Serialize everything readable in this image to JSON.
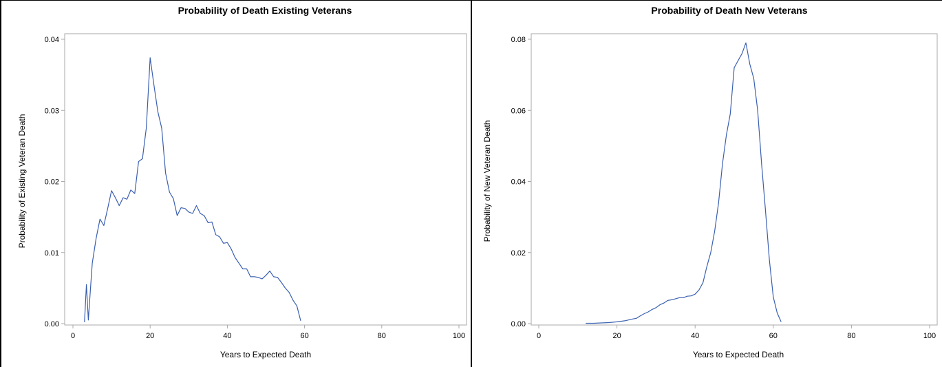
{
  "colors": {
    "line": "#3a5fb0",
    "frame": "#a8a8a8"
  },
  "chart_data": [
    {
      "type": "line",
      "title": "Probability of Death Existing Veterans",
      "xlabel": "Years to Expected Death",
      "ylabel": "Probability of Existing Veteran Death",
      "xlim": [
        0,
        100
      ],
      "ylim": [
        0,
        0.04
      ],
      "xticks": [
        "0",
        "20",
        "40",
        "60",
        "80",
        "100"
      ],
      "yticks": [
        "0.00",
        "0.01",
        "0.02",
        "0.03",
        "0.04"
      ],
      "grid": false,
      "x": [
        3,
        3.5,
        4,
        4.5,
        5,
        6,
        7,
        8,
        9,
        10,
        11,
        12,
        13,
        14,
        15,
        16,
        17,
        18,
        19,
        20,
        21,
        22,
        23,
        24,
        25,
        26,
        27,
        28,
        29,
        30,
        31,
        32,
        33,
        34,
        35,
        36,
        37,
        38,
        39,
        40,
        41,
        42,
        43,
        44,
        45,
        46,
        47,
        48,
        49,
        50,
        51,
        52,
        53,
        54,
        55,
        56,
        57,
        58,
        59
      ],
      "y": [
        0.0002,
        0.0055,
        0.0005,
        0.0045,
        0.0085,
        0.012,
        0.0147,
        0.0138,
        0.0162,
        0.0187,
        0.0177,
        0.0166,
        0.0177,
        0.0175,
        0.0188,
        0.0183,
        0.0228,
        0.0232,
        0.0275,
        0.0374,
        0.0335,
        0.0298,
        0.0275,
        0.0212,
        0.0185,
        0.0176,
        0.0152,
        0.0163,
        0.0162,
        0.0157,
        0.0155,
        0.0166,
        0.0155,
        0.0152,
        0.0142,
        0.0143,
        0.0125,
        0.0122,
        0.0113,
        0.0114,
        0.0105,
        0.0093,
        0.0085,
        0.0077,
        0.0077,
        0.0066,
        0.0066,
        0.0065,
        0.0063,
        0.0068,
        0.0074,
        0.0066,
        0.0065,
        0.0058,
        0.005,
        0.0044,
        0.0033,
        0.0025,
        0.0004
      ]
    },
    {
      "type": "line",
      "title": "Probability of Death New Veterans",
      "xlabel": "Years to Expected Death",
      "ylabel": "Probability of New Veteran Death",
      "xlim": [
        0,
        100
      ],
      "ylim": [
        0,
        0.08
      ],
      "xticks": [
        "0",
        "20",
        "40",
        "60",
        "80",
        "100"
      ],
      "yticks": [
        "0.00",
        "0.02",
        "0.04",
        "0.06",
        "0.08"
      ],
      "grid": false,
      "x": [
        12,
        14,
        16,
        18,
        20,
        22,
        24,
        25,
        26,
        27,
        28,
        29,
        30,
        31,
        32,
        33,
        34,
        35,
        36,
        37,
        38,
        39,
        40,
        41,
        42,
        43,
        44,
        45,
        46,
        47,
        48,
        49,
        50,
        51,
        52,
        53,
        54,
        55,
        56,
        57,
        58,
        59,
        60,
        61,
        62
      ],
      "y": [
        0.0001,
        0.0001,
        0.0002,
        0.0003,
        0.0005,
        0.0008,
        0.0013,
        0.0015,
        0.0022,
        0.0028,
        0.0033,
        0.004,
        0.0045,
        0.0053,
        0.0058,
        0.0065,
        0.0067,
        0.007,
        0.0073,
        0.0073,
        0.0077,
        0.0078,
        0.0083,
        0.0095,
        0.0115,
        0.016,
        0.02,
        0.026,
        0.034,
        0.045,
        0.053,
        0.059,
        0.072,
        0.074,
        0.076,
        0.079,
        0.073,
        0.069,
        0.06,
        0.045,
        0.032,
        0.018,
        0.0075,
        0.003,
        0.0005
      ]
    }
  ]
}
